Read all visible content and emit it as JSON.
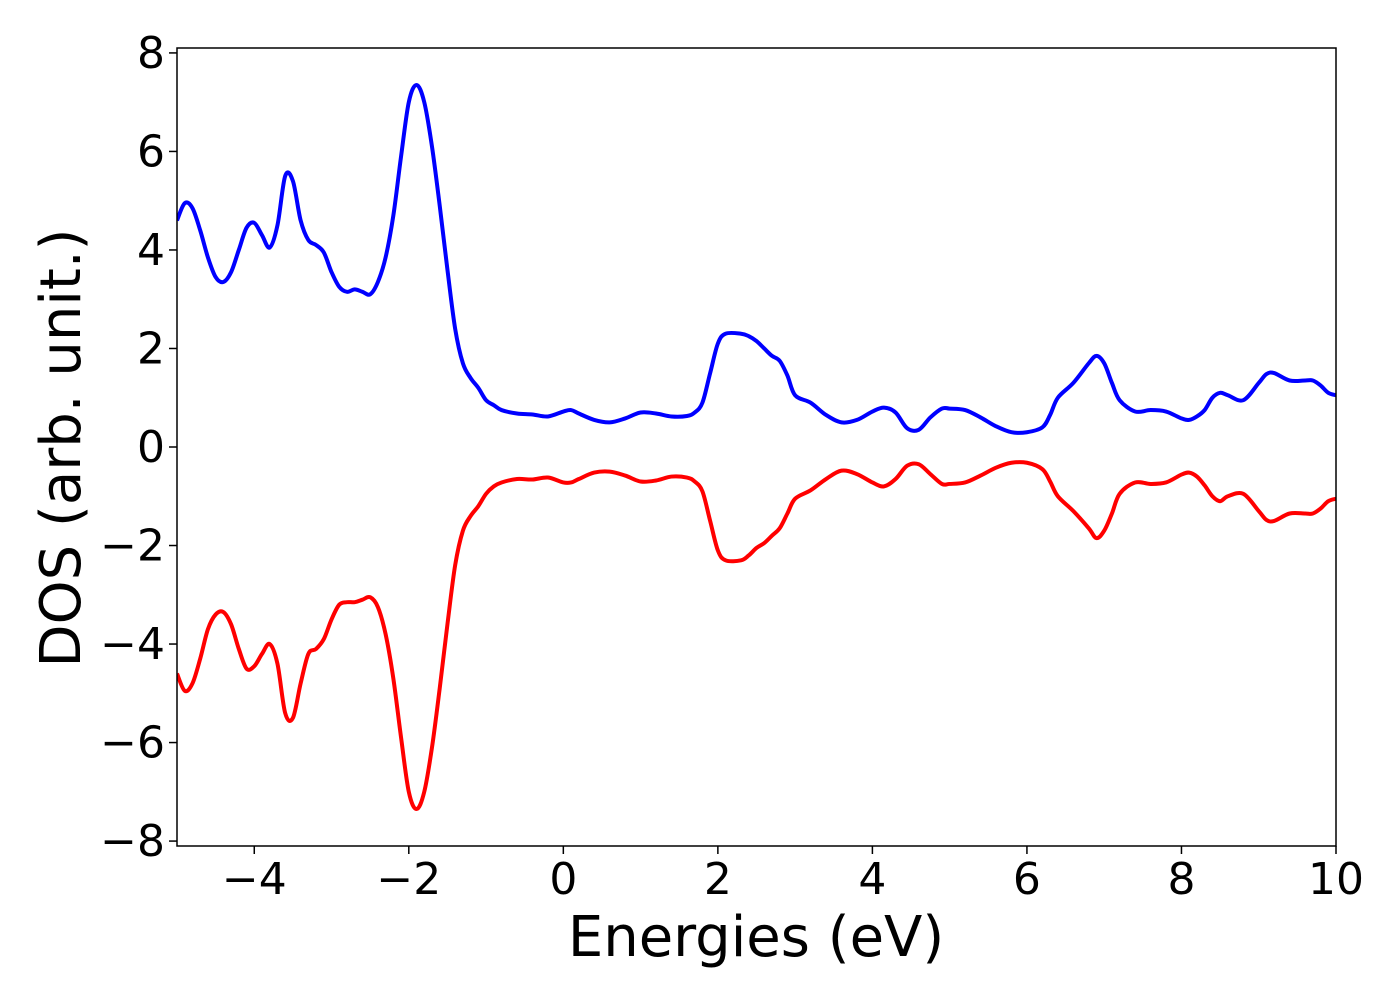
{
  "chart_data": {
    "type": "line",
    "title": "",
    "xlabel": "Energies (eV)",
    "ylabel": "DOS (arb. unit.)",
    "xlim": [
      -5,
      10
    ],
    "ylim": [
      -8.1,
      8.1
    ],
    "xticks": [
      -4,
      -2,
      0,
      2,
      4,
      6,
      8,
      10
    ],
    "xtick_labels": [
      "−4",
      "−2",
      "0",
      "2",
      "4",
      "6",
      "8",
      "10"
    ],
    "yticks": [
      8,
      6,
      4,
      2,
      0,
      -2,
      -4,
      -6,
      -8
    ],
    "ytick_labels": [
      "8",
      "6",
      "4",
      "2",
      "0",
      "−2",
      "−4",
      "−6",
      "−8"
    ],
    "grid": false,
    "legend": "none",
    "series": [
      {
        "color": "#0000ff",
        "x": [
          -5.0,
          -4.9,
          -4.8,
          -4.7,
          -4.6,
          -4.5,
          -4.4,
          -4.3,
          -4.2,
          -4.1,
          -4.0,
          -3.9,
          -3.8,
          -3.7,
          -3.6,
          -3.5,
          -3.4,
          -3.3,
          -3.2,
          -3.1,
          -3.0,
          -2.9,
          -2.8,
          -2.7,
          -2.6,
          -2.5,
          -2.4,
          -2.3,
          -2.2,
          -2.1,
          -2.0,
          -1.9,
          -1.8,
          -1.7,
          -1.6,
          -1.5,
          -1.4,
          -1.3,
          -1.2,
          -1.1,
          -1.0,
          -0.9,
          -0.8,
          -0.6,
          -0.4,
          -0.2,
          0.0,
          0.1,
          0.2,
          0.4,
          0.6,
          0.8,
          1.0,
          1.2,
          1.4,
          1.6,
          1.7,
          1.8,
          1.9,
          2.0,
          2.1,
          2.3,
          2.4,
          2.5,
          2.6,
          2.7,
          2.8,
          2.9,
          3.0,
          3.2,
          3.4,
          3.6,
          3.8,
          4.0,
          4.15,
          4.3,
          4.45,
          4.6,
          4.75,
          4.9,
          5.0,
          5.2,
          5.4,
          5.6,
          5.8,
          6.0,
          6.2,
          6.3,
          6.4,
          6.6,
          6.8,
          6.9,
          7.0,
          7.1,
          7.2,
          7.4,
          7.6,
          7.8,
          8.0,
          8.1,
          8.2,
          8.3,
          8.4,
          8.5,
          8.6,
          8.8,
          9.0,
          9.1,
          9.2,
          9.4,
          9.6,
          9.7,
          9.8,
          9.9,
          10.0
        ],
        "y": [
          4.6,
          4.95,
          4.85,
          4.4,
          3.85,
          3.45,
          3.35,
          3.55,
          4.0,
          4.45,
          4.55,
          4.3,
          4.05,
          4.5,
          5.5,
          5.4,
          4.6,
          4.2,
          4.1,
          3.95,
          3.55,
          3.25,
          3.15,
          3.2,
          3.15,
          3.1,
          3.35,
          3.85,
          4.7,
          5.9,
          7.0,
          7.35,
          7.0,
          6.1,
          4.9,
          3.6,
          2.4,
          1.7,
          1.4,
          1.2,
          0.95,
          0.85,
          0.75,
          0.68,
          0.66,
          0.62,
          0.72,
          0.75,
          0.68,
          0.55,
          0.5,
          0.58,
          0.7,
          0.68,
          0.62,
          0.63,
          0.7,
          0.9,
          1.5,
          2.1,
          2.3,
          2.3,
          2.25,
          2.15,
          2.0,
          1.85,
          1.75,
          1.45,
          1.05,
          0.9,
          0.65,
          0.5,
          0.55,
          0.72,
          0.8,
          0.7,
          0.38,
          0.35,
          0.6,
          0.78,
          0.78,
          0.75,
          0.6,
          0.42,
          0.3,
          0.3,
          0.4,
          0.65,
          1.0,
          1.3,
          1.7,
          1.85,
          1.7,
          1.3,
          0.95,
          0.72,
          0.75,
          0.72,
          0.58,
          0.55,
          0.62,
          0.75,
          1.0,
          1.1,
          1.05,
          0.95,
          1.3,
          1.48,
          1.5,
          1.35,
          1.35,
          1.35,
          1.25,
          1.1,
          1.05
        ]
      },
      {
        "color": "#ff0000",
        "x": [
          -5.0,
          -4.9,
          -4.8,
          -4.7,
          -4.6,
          -4.5,
          -4.4,
          -4.3,
          -4.2,
          -4.1,
          -4.0,
          -3.9,
          -3.8,
          -3.7,
          -3.6,
          -3.5,
          -3.4,
          -3.3,
          -3.2,
          -3.1,
          -3.0,
          -2.9,
          -2.8,
          -2.7,
          -2.6,
          -2.5,
          -2.4,
          -2.3,
          -2.2,
          -2.1,
          -2.0,
          -1.9,
          -1.8,
          -1.7,
          -1.6,
          -1.5,
          -1.4,
          -1.3,
          -1.2,
          -1.1,
          -1.0,
          -0.9,
          -0.8,
          -0.6,
          -0.4,
          -0.2,
          0.0,
          0.1,
          0.2,
          0.4,
          0.6,
          0.8,
          1.0,
          1.2,
          1.4,
          1.6,
          1.7,
          1.8,
          1.9,
          2.0,
          2.1,
          2.3,
          2.4,
          2.5,
          2.6,
          2.7,
          2.8,
          2.9,
          3.0,
          3.2,
          3.4,
          3.6,
          3.8,
          4.0,
          4.15,
          4.3,
          4.45,
          4.6,
          4.75,
          4.9,
          5.0,
          5.2,
          5.4,
          5.6,
          5.8,
          6.0,
          6.2,
          6.3,
          6.4,
          6.6,
          6.8,
          6.9,
          7.0,
          7.1,
          7.2,
          7.4,
          7.6,
          7.8,
          8.0,
          8.1,
          8.2,
          8.3,
          8.4,
          8.5,
          8.6,
          8.8,
          9.0,
          9.1,
          9.2,
          9.4,
          9.6,
          9.7,
          9.8,
          9.9,
          10.0
        ],
        "y": [
          -4.6,
          -4.95,
          -4.8,
          -4.3,
          -3.7,
          -3.4,
          -3.35,
          -3.6,
          -4.1,
          -4.5,
          -4.45,
          -4.2,
          -4.0,
          -4.4,
          -5.4,
          -5.5,
          -4.8,
          -4.2,
          -4.1,
          -3.9,
          -3.5,
          -3.2,
          -3.15,
          -3.15,
          -3.1,
          -3.05,
          -3.25,
          -3.8,
          -4.7,
          -5.9,
          -7.0,
          -7.35,
          -7.0,
          -6.1,
          -4.9,
          -3.6,
          -2.4,
          -1.7,
          -1.4,
          -1.2,
          -0.95,
          -0.8,
          -0.72,
          -0.65,
          -0.66,
          -0.62,
          -0.72,
          -0.72,
          -0.65,
          -0.52,
          -0.5,
          -0.58,
          -0.7,
          -0.68,
          -0.6,
          -0.62,
          -0.7,
          -0.9,
          -1.5,
          -2.1,
          -2.3,
          -2.3,
          -2.2,
          -2.05,
          -1.95,
          -1.8,
          -1.65,
          -1.35,
          -1.05,
          -0.88,
          -0.65,
          -0.48,
          -0.55,
          -0.72,
          -0.8,
          -0.65,
          -0.38,
          -0.35,
          -0.55,
          -0.75,
          -0.75,
          -0.72,
          -0.58,
          -0.42,
          -0.32,
          -0.32,
          -0.45,
          -0.7,
          -1.0,
          -1.3,
          -1.65,
          -1.85,
          -1.7,
          -1.35,
          -0.95,
          -0.72,
          -0.75,
          -0.72,
          -0.56,
          -0.52,
          -0.6,
          -0.78,
          -1.0,
          -1.1,
          -1.0,
          -0.95,
          -1.3,
          -1.48,
          -1.5,
          -1.35,
          -1.35,
          -1.35,
          -1.25,
          -1.1,
          -1.05
        ]
      }
    ]
  }
}
